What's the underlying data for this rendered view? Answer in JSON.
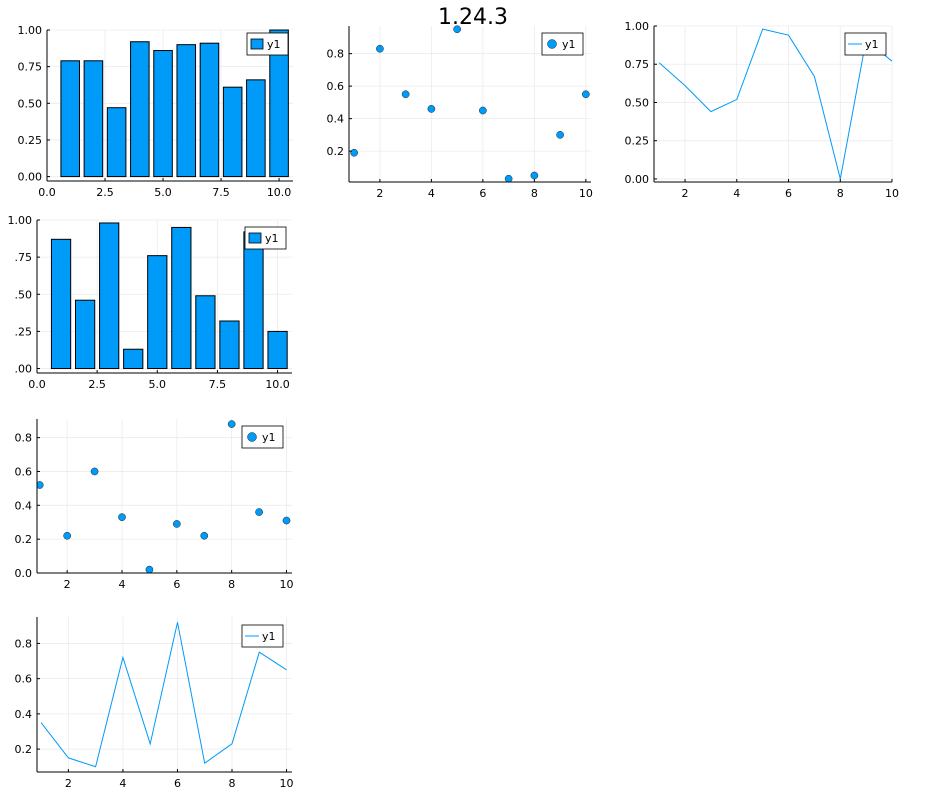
{
  "title": "1.24.3",
  "colors": {
    "series": "#009af9",
    "axis": "#000000",
    "grid": "#ebebeb"
  },
  "chart_data": [
    {
      "id": "p1",
      "type": "bar",
      "legend": "y1",
      "legend_position": "top-right",
      "x": [
        1,
        2,
        3,
        4,
        5,
        6,
        7,
        8,
        9,
        10
      ],
      "values": [
        0.79,
        0.79,
        0.47,
        0.92,
        0.86,
        0.9,
        0.91,
        0.61,
        0.66,
        1.0
      ],
      "xlim": [
        0,
        10.6
      ],
      "ylim": [
        -0.03,
        1.0
      ],
      "xticks": [
        0,
        2.5,
        5,
        7.5,
        10
      ],
      "xtick_labels": [
        "0.0",
        "2.5",
        "5.0",
        "7.5",
        "10.0"
      ],
      "yticks": [
        0,
        0.25,
        0.5,
        0.75,
        1.0
      ],
      "ytick_labels": [
        "0.00",
        "0.25",
        "0.50",
        "0.75",
        "1.00"
      ],
      "grid": true
    },
    {
      "id": "p2",
      "type": "scatter",
      "legend": "y1",
      "legend_position": "top-right",
      "x": [
        1,
        2,
        3,
        4,
        5,
        6,
        7,
        8,
        9,
        10
      ],
      "values": [
        0.19,
        0.83,
        0.55,
        0.46,
        0.95,
        0.45,
        0.03,
        0.05,
        0.3,
        0.55
      ],
      "xlim": [
        0.8,
        10.2
      ],
      "ylim": [
        0.01,
        0.97
      ],
      "xticks": [
        2,
        4,
        6,
        8,
        10
      ],
      "xtick_labels": [
        "2",
        "4",
        "6",
        "8",
        "10"
      ],
      "yticks": [
        0.2,
        0.4,
        0.6,
        0.8
      ],
      "ytick_labels": [
        "0.2",
        "0.4",
        "0.6",
        "0.8"
      ],
      "grid": true
    },
    {
      "id": "p3",
      "type": "line",
      "legend": "y1",
      "legend_position": "top-right",
      "x": [
        1,
        2,
        3,
        4,
        5,
        6,
        7,
        8,
        9,
        10
      ],
      "values": [
        0.76,
        0.61,
        0.44,
        0.52,
        0.98,
        0.94,
        0.67,
        0.0,
        0.91,
        0.77
      ],
      "xlim": [
        0.8,
        10.0
      ],
      "ylim": [
        -0.02,
        1.0
      ],
      "xticks": [
        2,
        4,
        6,
        8,
        10
      ],
      "xtick_labels": [
        "2",
        "4",
        "6",
        "8",
        "10"
      ],
      "yticks": [
        0,
        0.25,
        0.5,
        0.75,
        1.0
      ],
      "ytick_labels": [
        "0.00",
        "0.25",
        "0.50",
        "0.75",
        "1.00"
      ],
      "grid": true
    },
    {
      "id": "p4",
      "type": "bar",
      "legend": "y1",
      "legend_position": "top-right",
      "x": [
        1,
        2,
        3,
        4,
        5,
        6,
        7,
        8,
        9,
        10
      ],
      "values": [
        0.87,
        0.46,
        0.98,
        0.13,
        0.76,
        0.95,
        0.49,
        0.32,
        0.92,
        0.25
      ],
      "xlim": [
        0,
        10.6
      ],
      "ylim": [
        -0.03,
        1.0
      ],
      "xticks": [
        0,
        2.5,
        5,
        7.5,
        10
      ],
      "xtick_labels": [
        "0.0",
        "2.5",
        "5.0",
        "7.5",
        "10.0"
      ],
      "yticks": [
        0,
        0.25,
        0.5,
        0.75,
        1.0
      ],
      "ytick_labels": [
        ".00",
        ".25",
        ".50",
        ".75",
        "1.00"
      ],
      "grid": true
    },
    {
      "id": "p5",
      "type": "scatter",
      "legend": "y1",
      "legend_position": "top-right",
      "x": [
        1,
        2,
        3,
        4,
        5,
        6,
        7,
        8,
        9,
        10
      ],
      "values": [
        0.52,
        0.22,
        0.6,
        0.33,
        0.02,
        0.29,
        0.22,
        0.88,
        0.36,
        0.31
      ],
      "xlim": [
        0.9,
        10.2
      ],
      "ylim": [
        0.0,
        0.91
      ],
      "xticks": [
        2,
        4,
        6,
        8,
        10
      ],
      "xtick_labels": [
        "2",
        "4",
        "6",
        "8",
        "10"
      ],
      "yticks": [
        0,
        0.2,
        0.4,
        0.6,
        0.8
      ],
      "ytick_labels": [
        "0.0",
        "0.2",
        "0.4",
        "0.6",
        "0.8"
      ],
      "grid": true
    },
    {
      "id": "p6",
      "type": "line",
      "legend": "y1",
      "legend_position": "top-right",
      "x": [
        1,
        2,
        3,
        4,
        5,
        6,
        7,
        8,
        9,
        10
      ],
      "values": [
        0.35,
        0.15,
        0.1,
        0.72,
        0.23,
        0.92,
        0.12,
        0.23,
        0.75,
        0.65
      ],
      "xlim": [
        0.85,
        10.2
      ],
      "ylim": [
        0.07,
        0.95
      ],
      "xticks": [
        2,
        4,
        6,
        8,
        10
      ],
      "xtick_labels": [
        "2",
        "4",
        "6",
        "8",
        "10"
      ],
      "yticks": [
        0.2,
        0.4,
        0.6,
        0.8
      ],
      "ytick_labels": [
        "0.2",
        "0.4",
        "0.6",
        "0.8"
      ],
      "grid": true
    }
  ]
}
